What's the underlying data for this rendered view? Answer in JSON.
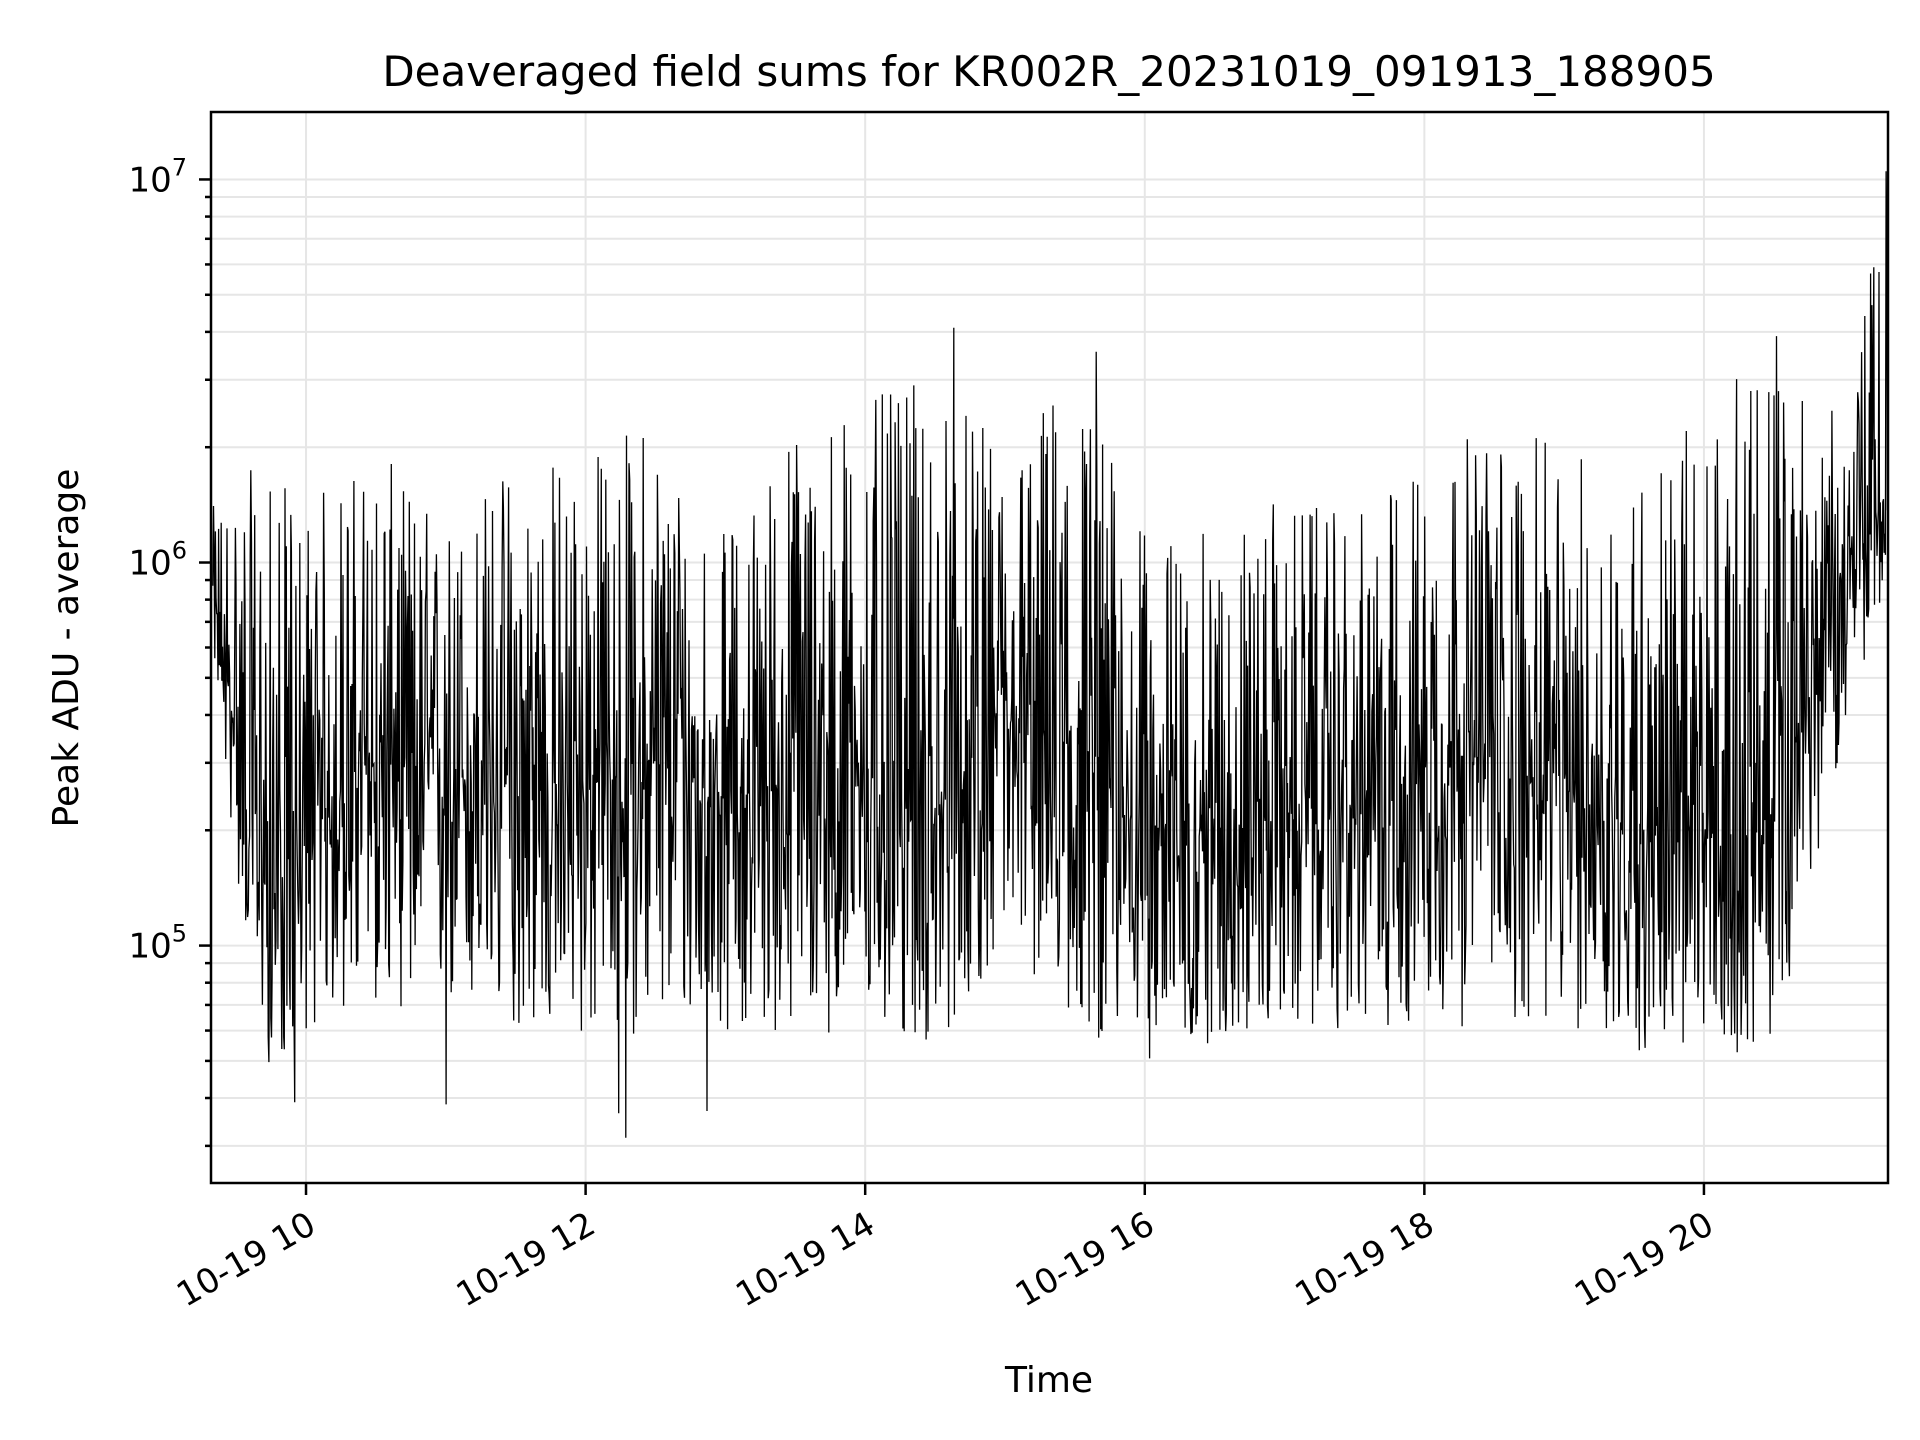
{
  "chart_data": {
    "type": "line",
    "title": "Deaveraged field sums for KR002R_20231019_091913_188905",
    "xlabel": "Time",
    "ylabel": "Peak ADU - average",
    "yscale": "log",
    "ylim": [
      24000,
      15000000
    ],
    "xlim": [
      "2023-10-19 09:19:13",
      "2023-10-19 21:19:00"
    ],
    "xtick_labels": [
      "10-19 10",
      "10-19 12",
      "10-19 14",
      "10-19 16",
      "10-19 18",
      "10-19 20"
    ],
    "xtick_times": [
      "2023-10-19 10:00",
      "2023-10-19 12:00",
      "2023-10-19 14:00",
      "2023-10-19 16:00",
      "2023-10-19 18:00",
      "2023-10-19 20:00"
    ],
    "ytick_labels": [
      {
        "base": "10",
        "exp": "5",
        "value": 100000
      },
      {
        "base": "10",
        "exp": "6",
        "value": 1000000
      },
      {
        "base": "10",
        "exp": "7",
        "value": 10000000
      }
    ],
    "grid": true,
    "legend": "none",
    "color": "#000000",
    "series": [
      {
        "x": [
          "2023-10-19 09:20",
          "2023-10-19 09:30",
          "2023-10-19 09:45",
          "2023-10-19 10:00",
          "2023-10-19 10:30",
          "2023-10-19 11:00",
          "2023-10-19 11:30",
          "2023-10-19 12:00",
          "2023-10-19 12:30",
          "2023-10-19 13:00",
          "2023-10-19 13:30",
          "2023-10-19 14:00",
          "2023-10-19 14:30",
          "2023-10-19 15:00",
          "2023-10-19 15:30",
          "2023-10-19 16:00",
          "2023-10-19 16:30",
          "2023-10-19 17:00",
          "2023-10-19 17:30",
          "2023-10-19 18:00",
          "2023-10-19 18:30",
          "2023-10-19 19:00",
          "2023-10-19 19:30",
          "2023-10-19 20:00",
          "2023-10-19 20:30",
          "2023-10-19 21:00",
          "2023-10-19 21:19"
        ],
        "center": [
          800000,
          350000,
          130000,
          200000,
          300000,
          280000,
          250000,
          260000,
          300000,
          240000,
          270000,
          280000,
          210000,
          350000,
          320000,
          200000,
          200000,
          220000,
          210000,
          330000,
          300000,
          250000,
          200000,
          190000,
          200000,
          1000000,
          1500000
        ],
        "low": [
          600000,
          150000,
          45000,
          60000,
          70000,
          65000,
          60000,
          55000,
          60000,
          60000,
          58000,
          60000,
          52000,
          100000,
          60000,
          50000,
          55000,
          60000,
          60000,
          60000,
          62000,
          60000,
          52000,
          50000,
          55000,
          350000,
          900000
        ],
        "high": [
          1400000,
          1800000,
          1700000,
          1500000,
          2000000,
          1300000,
          2000000,
          2000000,
          2500000,
          1200000,
          2500000,
          2700000,
          3000000,
          2000000,
          3500000,
          1200000,
          1200000,
          1500000,
          1300000,
          2000000,
          2300000,
          2000000,
          1800000,
          2500000,
          3800000,
          2300000,
          10500000
        ],
        "spikes": [
          {
            "x": "2023-10-19 09:55",
            "y": 39000
          },
          {
            "x": "2023-10-19 11:00",
            "y": 38500
          },
          {
            "x": "2023-10-19 12:14",
            "y": 36500
          },
          {
            "x": "2023-10-19 12:17",
            "y": 31500
          },
          {
            "x": "2023-10-19 12:52",
            "y": 37000
          },
          {
            "x": "2023-10-19 14:38",
            "y": 4100000
          },
          {
            "x": "2023-10-19 15:39",
            "y": 3550000
          },
          {
            "x": "2023-10-19 20:31",
            "y": 3900000
          },
          {
            "x": "2023-10-19 21:18",
            "y": 10500000
          }
        ]
      }
    ]
  }
}
